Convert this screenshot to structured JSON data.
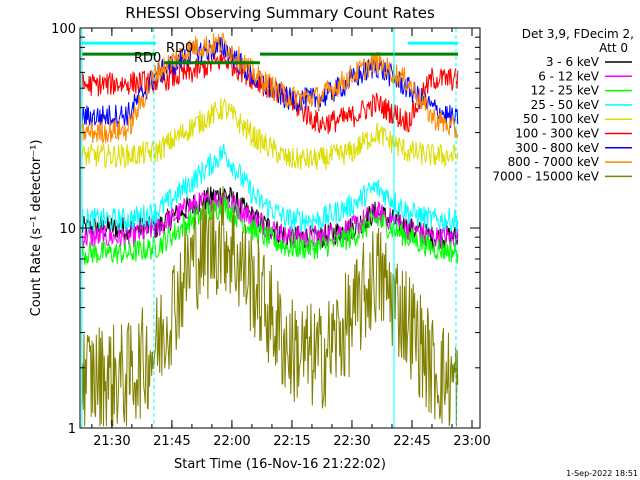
{
  "chart_data": {
    "type": "line",
    "title": "RHESSI Observing Summary Count Rates",
    "xlabel": "Start Time (16-Nov-16 21:22:02)",
    "ylabel": "Count Rate (s⁻¹ detector⁻¹)",
    "y_scale": "log",
    "xlim": [
      "21:22:02",
      "23:02:00"
    ],
    "ylim": [
      1,
      100
    ],
    "x_ticks": [
      "21:30",
      "21:45",
      "22:00",
      "22:15",
      "22:30",
      "22:45",
      "23:00"
    ],
    "y_ticks": [
      "1",
      "10",
      "100"
    ],
    "legend_header": "Det 3,9, FDecim 2,",
    "legend_header2": "Att 0",
    "legend_position": "right",
    "timestamp": "1-Sep-2022 18:51",
    "grid": false,
    "x": [
      "21:26",
      "21:34",
      "21:41",
      "21:50",
      "21:58",
      "22:06",
      "22:14",
      "22:22",
      "22:30",
      "22:36",
      "22:44",
      "22:50",
      "22:57"
    ],
    "series": [
      {
        "name": "3 - 6 keV",
        "color": "#000000",
        "values": [
          10,
          10,
          10,
          13,
          15,
          11,
          9,
          9,
          10,
          12,
          10,
          9,
          9
        ]
      },
      {
        "name": "6 - 12 keV",
        "color": "#ff00ff",
        "values": [
          9,
          9,
          10,
          13,
          14,
          11,
          9,
          9,
          10,
          12,
          10,
          9,
          9
        ]
      },
      {
        "name": "12 - 25 keV",
        "color": "#00ff00",
        "values": [
          7.5,
          7.5,
          8,
          11,
          13,
          9.5,
          8,
          8,
          9,
          11,
          9,
          8,
          7.5
        ]
      },
      {
        "name": "25 - 50 keV",
        "color": "#00ffff",
        "values": [
          11,
          11,
          12,
          17,
          24,
          14,
          11,
          11,
          13,
          16,
          12,
          11,
          11
        ]
      },
      {
        "name": "50 - 100 keV",
        "color": "#dddd00",
        "values": [
          23,
          23,
          24,
          32,
          40,
          28,
          22,
          22,
          24,
          30,
          24,
          23,
          23
        ]
      },
      {
        "name": "100 - 300 keV",
        "color": "#ff0000",
        "values": [
          52,
          53,
          54,
          60,
          70,
          55,
          44,
          33,
          36,
          42,
          34,
          56,
          55
        ]
      },
      {
        "name": "300 - 800 keV",
        "color": "#0000ff",
        "values": [
          36,
          37,
          58,
          75,
          80,
          55,
          44,
          44,
          55,
          65,
          50,
          40,
          34
        ]
      },
      {
        "name": "800 - 7000 keV",
        "color": "#ff8800",
        "values": [
          30,
          31,
          60,
          80,
          84,
          58,
          45,
          45,
          58,
          68,
          54,
          36,
          30
        ]
      },
      {
        "name": "7000 - 15000 keV",
        "color": "#808000",
        "values": [
          1.8,
          1.8,
          2.5,
          7,
          9,
          5,
          2.5,
          2.2,
          3.5,
          6,
          3.5,
          2,
          1.6
        ]
      }
    ],
    "annotations": [
      "RD0",
      "RD0"
    ]
  }
}
